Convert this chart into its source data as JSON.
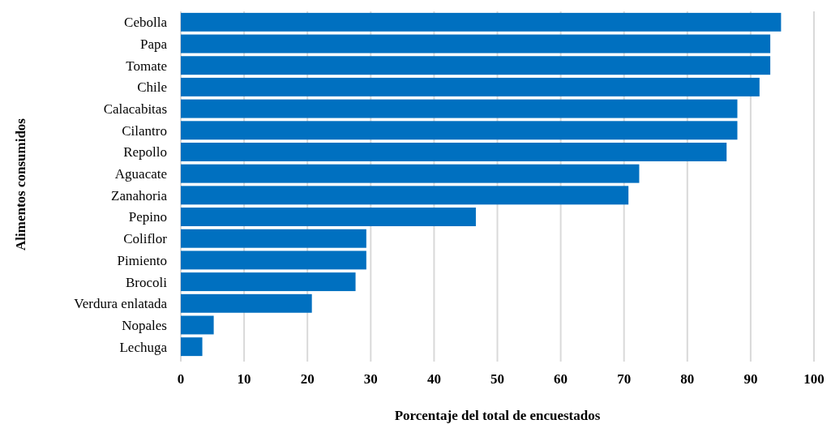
{
  "chart_data": {
    "type": "bar",
    "orientation": "horizontal",
    "xlabel": "Porcentaje del total de encuestados",
    "ylabel": "Alimentos consumidos",
    "categories": [
      "Cebolla",
      "Papa",
      "Tomate",
      "Chile",
      "Calacabitas",
      "Cilantro",
      "Repollo",
      "Aguacate",
      "Zanahoria",
      "Pepino",
      "Coliflor",
      "Pimiento",
      "Brocoli",
      "Verdura enlatada",
      "Nopales",
      "Lechuga"
    ],
    "values": [
      94.8,
      93.1,
      93.1,
      91.4,
      87.9,
      87.9,
      86.2,
      72.4,
      70.7,
      46.6,
      29.3,
      29.3,
      27.6,
      20.7,
      5.2,
      3.4
    ],
    "color": "#0070c0",
    "xlim": [
      0,
      100
    ],
    "xticks": [
      0,
      10,
      20,
      30,
      40,
      50,
      60,
      70,
      80,
      90,
      100
    ],
    "grid": "x"
  }
}
